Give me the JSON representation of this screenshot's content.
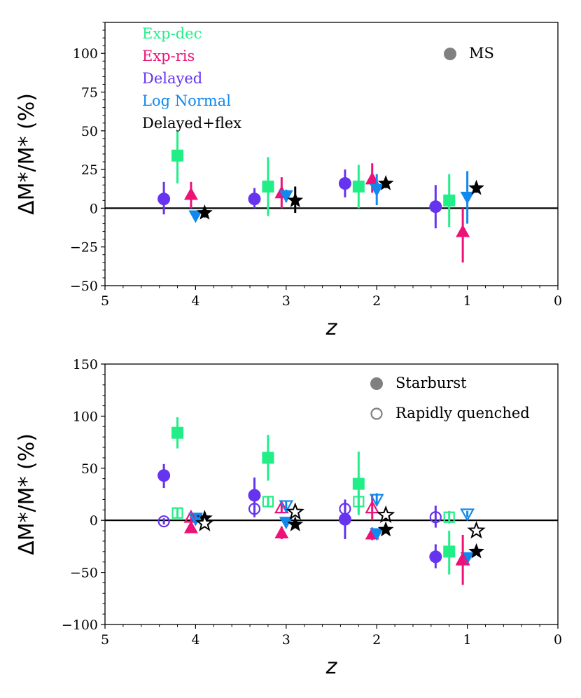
{
  "chart_data": [
    {
      "type": "scatter",
      "xlabel": "z",
      "ylabel": "ΔM*/M* (%)",
      "xlim": [
        5,
        0
      ],
      "ylim": [
        -50,
        120
      ],
      "xticks": [
        5,
        4,
        3,
        2,
        1,
        0
      ],
      "yticks": [
        -50,
        -25,
        0,
        25,
        50,
        75,
        100
      ],
      "zero_line": true,
      "legend_models": [
        {
          "name": "Exp-dec",
          "color": "#22ee88",
          "marker": "square"
        },
        {
          "name": "Exp-ris",
          "color": "#ee1177",
          "marker": "triangle-up"
        },
        {
          "name": "Delayed",
          "color": "#6633ee",
          "marker": "circle"
        },
        {
          "name": "Log Normal",
          "color": "#1188ee",
          "marker": "triangle-down"
        },
        {
          "name": "Delayed+flex",
          "color": "#000000",
          "marker": "star"
        }
      ],
      "legend_sfh": [
        {
          "name": "MS",
          "fill": "filled"
        }
      ],
      "series": [
        {
          "name": "Exp-dec",
          "fill": "filled",
          "points": [
            {
              "x": 4.2,
              "y": 34,
              "lo": 16,
              "hi": 50
            },
            {
              "x": 3.2,
              "y": 14,
              "lo": -5,
              "hi": 33
            },
            {
              "x": 2.2,
              "y": 14,
              "lo": 0,
              "hi": 28
            },
            {
              "x": 1.2,
              "y": 5,
              "lo": -12,
              "hi": 22
            }
          ]
        },
        {
          "name": "Exp-ris",
          "fill": "filled",
          "points": [
            {
              "x": 4.05,
              "y": 9,
              "lo": 0,
              "hi": 17
            },
            {
              "x": 3.05,
              "y": 10,
              "lo": 0,
              "hi": 20
            },
            {
              "x": 2.05,
              "y": 19,
              "lo": 10,
              "hi": 29
            },
            {
              "x": 1.05,
              "y": -15,
              "lo": -35,
              "hi": 0
            }
          ]
        },
        {
          "name": "Delayed",
          "fill": "filled",
          "points": [
            {
              "x": 4.35,
              "y": 6,
              "lo": -4,
              "hi": 17
            },
            {
              "x": 3.35,
              "y": 6,
              "lo": 0,
              "hi": 13
            },
            {
              "x": 2.35,
              "y": 16,
              "lo": 7,
              "hi": 25
            },
            {
              "x": 1.35,
              "y": 1,
              "lo": -13,
              "hi": 15
            }
          ]
        },
        {
          "name": "Log Normal",
          "fill": "filled",
          "points": [
            {
              "x": 4.0,
              "y": -5,
              "lo": -8,
              "hi": -2
            },
            {
              "x": 3.0,
              "y": 8,
              "lo": 4,
              "hi": 12
            },
            {
              "x": 2.0,
              "y": 12,
              "lo": 2,
              "hi": 22
            },
            {
              "x": 1.0,
              "y": 7,
              "lo": -10,
              "hi": 24
            }
          ]
        },
        {
          "name": "Delayed+flex",
          "fill": "filled",
          "points": [
            {
              "x": 3.9,
              "y": -3,
              "lo": -6,
              "hi": 0
            },
            {
              "x": 2.9,
              "y": 5,
              "lo": -3,
              "hi": 14
            },
            {
              "x": 1.9,
              "y": 16,
              "lo": 13,
              "hi": 19
            },
            {
              "x": 0.9,
              "y": 13,
              "lo": 10,
              "hi": 16
            }
          ]
        }
      ]
    },
    {
      "type": "scatter",
      "xlabel": "z",
      "ylabel": "ΔM*/M* (%)",
      "xlim": [
        5,
        0
      ],
      "ylim": [
        -100,
        150
      ],
      "xticks": [
        5,
        4,
        3,
        2,
        1,
        0
      ],
      "yticks": [
        -100,
        -50,
        0,
        50,
        100,
        150
      ],
      "zero_line": true,
      "legend_sfh": [
        {
          "name": "Starburst",
          "fill": "filled"
        },
        {
          "name": "Rapidly quenched",
          "fill": "open"
        }
      ],
      "series": [
        {
          "name": "Exp-dec",
          "fill": "filled",
          "points": [
            {
              "x": 4.2,
              "y": 84,
              "lo": 69,
              "hi": 99
            },
            {
              "x": 3.2,
              "y": 60,
              "lo": 38,
              "hi": 82
            },
            {
              "x": 2.2,
              "y": 35,
              "lo": 5,
              "hi": 66
            },
            {
              "x": 1.2,
              "y": -30,
              "lo": -52,
              "hi": -10
            }
          ]
        },
        {
          "name": "Exp-ris",
          "fill": "filled",
          "points": [
            {
              "x": 4.05,
              "y": -7,
              "lo": -12,
              "hi": -2
            },
            {
              "x": 3.05,
              "y": -12,
              "lo": -18,
              "hi": -6
            },
            {
              "x": 2.05,
              "y": -13,
              "lo": -19,
              "hi": -7
            },
            {
              "x": 1.05,
              "y": -37,
              "lo": -42,
              "hi": -32
            }
          ]
        },
        {
          "name": "Delayed",
          "fill": "filled",
          "points": [
            {
              "x": 4.35,
              "y": 43,
              "lo": 31,
              "hi": 54
            },
            {
              "x": 3.35,
              "y": 24,
              "lo": 3,
              "hi": 41
            },
            {
              "x": 2.35,
              "y": 1,
              "lo": -18,
              "hi": 20
            },
            {
              "x": 1.35,
              "y": -35,
              "lo": -46,
              "hi": -23
            }
          ]
        },
        {
          "name": "Log Normal",
          "fill": "filled",
          "points": [
            {
              "x": 4.0,
              "y": 1,
              "lo": -3,
              "hi": 5
            },
            {
              "x": 3.0,
              "y": -2,
              "lo": -6,
              "hi": 2
            },
            {
              "x": 2.0,
              "y": -13,
              "lo": -17,
              "hi": -9
            },
            {
              "x": 1.0,
              "y": -36,
              "lo": -41,
              "hi": -31
            }
          ]
        },
        {
          "name": "Delayed+flex",
          "fill": "filled",
          "points": [
            {
              "x": 3.9,
              "y": 2,
              "lo": -1,
              "hi": 5
            },
            {
              "x": 2.9,
              "y": -4,
              "lo": -7,
              "hi": -1
            },
            {
              "x": 1.9,
              "y": -9,
              "lo": -12,
              "hi": -6
            },
            {
              "x": 0.9,
              "y": -30,
              "lo": -33,
              "hi": -27
            }
          ]
        },
        {
          "name": "Exp-dec",
          "fill": "open",
          "points": [
            {
              "x": 4.2,
              "y": 7,
              "lo": 2,
              "hi": 12
            },
            {
              "x": 3.2,
              "y": 18,
              "lo": 13,
              "hi": 23
            },
            {
              "x": 2.2,
              "y": 18,
              "lo": 8,
              "hi": 28
            },
            {
              "x": 1.2,
              "y": 3,
              "lo": -3,
              "hi": 9
            }
          ]
        },
        {
          "name": "Exp-ris",
          "fill": "open",
          "points": [
            {
              "x": 4.05,
              "y": 3,
              "lo": -1,
              "hi": 7
            },
            {
              "x": 3.05,
              "y": 12,
              "lo": 7,
              "hi": 17
            },
            {
              "x": 2.05,
              "y": 12,
              "lo": 0,
              "hi": 25
            },
            {
              "x": 1.05,
              "y": -38,
              "lo": -62,
              "hi": -14
            }
          ]
        },
        {
          "name": "Delayed",
          "fill": "open",
          "points": [
            {
              "x": 4.35,
              "y": -1,
              "lo": -4,
              "hi": 2
            },
            {
              "x": 3.35,
              "y": 11,
              "lo": 5,
              "hi": 17
            },
            {
              "x": 2.35,
              "y": 11,
              "lo": 5,
              "hi": 17
            },
            {
              "x": 1.35,
              "y": 3,
              "lo": -7,
              "hi": 14
            }
          ]
        },
        {
          "name": "Log Normal",
          "fill": "open",
          "points": [
            {
              "x": 4.0,
              "y": 2,
              "lo": -1,
              "hi": 5
            },
            {
              "x": 3.0,
              "y": 14,
              "lo": 10,
              "hi": 18
            },
            {
              "x": 2.0,
              "y": 20,
              "lo": 14,
              "hi": 26
            },
            {
              "x": 1.0,
              "y": 6,
              "lo": 3,
              "hi": 9
            }
          ]
        },
        {
          "name": "Delayed+flex",
          "fill": "open",
          "points": [
            {
              "x": 3.9,
              "y": -3,
              "lo": -6,
              "hi": 0
            },
            {
              "x": 2.9,
              "y": 8,
              "lo": 5,
              "hi": 11
            },
            {
              "x": 1.9,
              "y": 5,
              "lo": 2,
              "hi": 8
            },
            {
              "x": 0.9,
              "y": -10,
              "lo": -13,
              "hi": -7
            }
          ]
        }
      ]
    }
  ]
}
